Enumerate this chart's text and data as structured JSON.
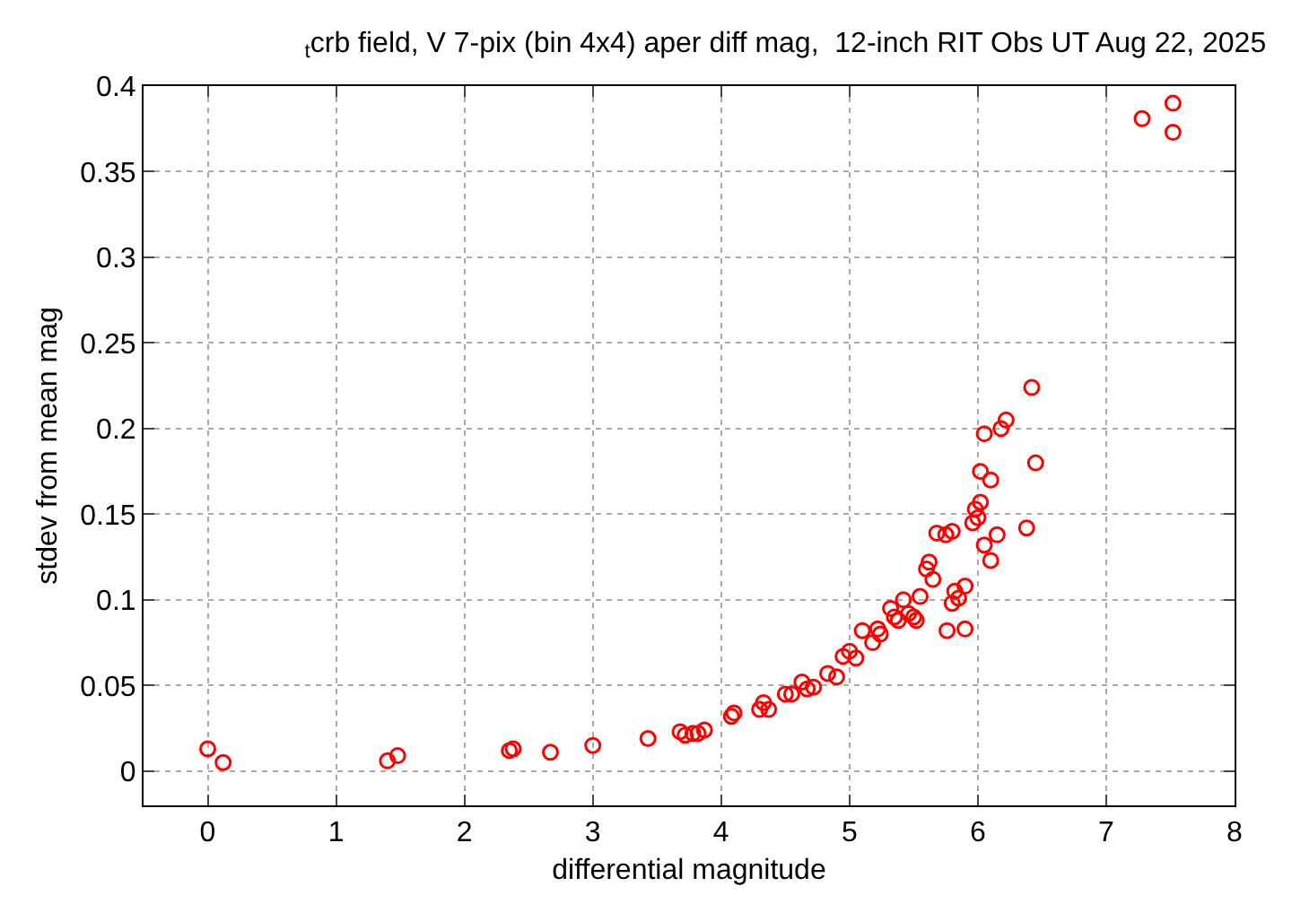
{
  "chart_data": {
    "type": "scatter",
    "title": "$_{t}$crb field, V 7-pix (bin 4x4) aper diff mag,  12-inch RIT Obs UT Aug 22, 2025",
    "xlabel": "differential magnitude",
    "ylabel": "stdev from mean mag",
    "x": [
      0,
      0.12,
      1.4,
      1.48,
      2.35,
      2.38,
      2.67,
      3.0,
      3.43,
      3.68,
      3.72,
      3.78,
      3.82,
      3.87,
      4.08,
      4.1,
      4.3,
      4.33,
      4.37,
      4.5,
      4.55,
      4.63,
      4.67,
      4.72,
      4.83,
      4.9,
      4.95,
      5.0,
      5.05,
      5.1,
      5.18,
      5.22,
      5.24,
      5.32,
      5.35,
      5.38,
      5.42,
      5.46,
      5.5,
      5.52,
      5.55,
      5.6,
      5.62,
      5.65,
      5.68,
      5.75,
      5.8,
      5.76,
      5.8,
      5.85,
      5.82,
      5.9,
      5.9,
      5.96,
      5.98,
      6.0,
      6.02,
      6.05,
      6.1,
      6.02,
      6.05,
      6.15,
      6.1,
      6.18,
      6.22,
      6.38,
      6.42,
      6.45,
      7.28,
      7.52,
      7.52
    ],
    "values": [
      0.013,
      0.005,
      0.006,
      0.009,
      0.012,
      0.013,
      0.011,
      0.015,
      0.019,
      0.023,
      0.021,
      0.022,
      0.022,
      0.024,
      0.032,
      0.034,
      0.036,
      0.04,
      0.036,
      0.045,
      0.045,
      0.052,
      0.048,
      0.049,
      0.057,
      0.055,
      0.067,
      0.07,
      0.066,
      0.082,
      0.075,
      0.083,
      0.08,
      0.095,
      0.09,
      0.088,
      0.1,
      0.092,
      0.09,
      0.088,
      0.102,
      0.118,
      0.122,
      0.112,
      0.139,
      0.138,
      0.14,
      0.082,
      0.098,
      0.101,
      0.105,
      0.083,
      0.108,
      0.145,
      0.153,
      0.148,
      0.157,
      0.132,
      0.17,
      0.175,
      0.197,
      0.138,
      0.123,
      0.2,
      0.205,
      0.142,
      0.224,
      0.18,
      0.381,
      0.39,
      0.373
    ],
    "color": "#ff0000",
    "marker": "circle",
    "grid": true,
    "xlim": [
      -0.5,
      8
    ],
    "xticks": [
      0,
      1,
      2,
      3,
      4,
      5,
      6,
      7,
      8
    ],
    "ylim": [
      -0.02,
      0.4
    ],
    "yticks": [
      0,
      0.05,
      0.1,
      0.15,
      0.2,
      0.25,
      0.3,
      0.35,
      0.4
    ]
  }
}
